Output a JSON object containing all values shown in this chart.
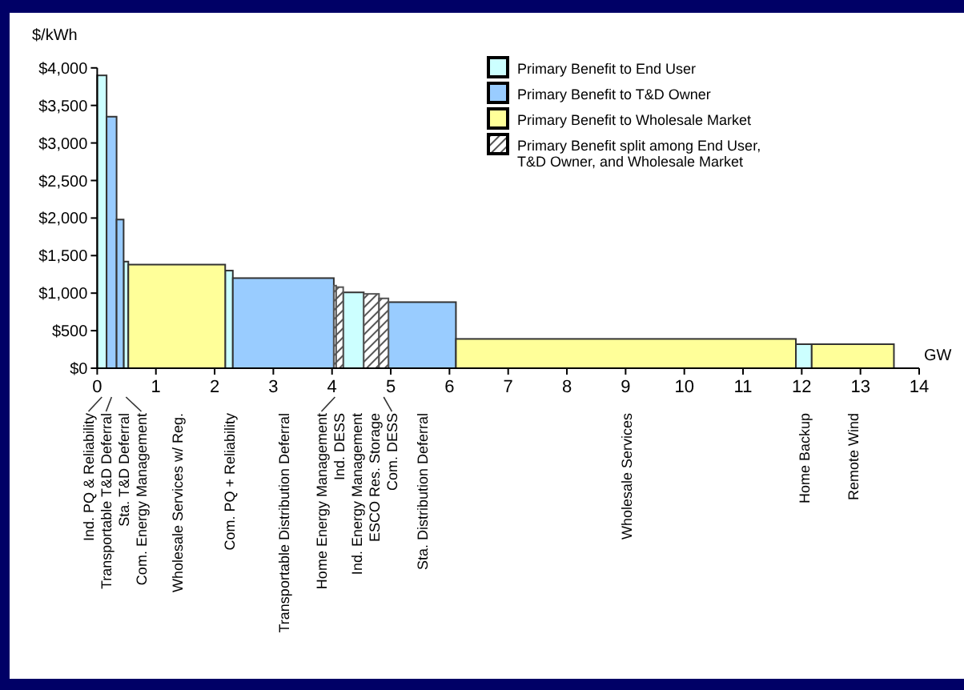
{
  "chart_data": {
    "type": "histogram",
    "ylabel": "$/kWh",
    "xlabel": "GW",
    "categories": [
      "Ind. PQ & Reliability",
      "Transportable T&D Deferral",
      "Sta. T&D Deferral",
      "Com. Energy Management",
      "Wholesale Services w/ Reg.",
      "Com. PQ + Reliability",
      "Transportable Distribution Deferral",
      "Home Energy Management",
      "Ind. DESS",
      "Ind. Energy Management",
      "ESCO Res. Storage",
      "Com. DESS",
      "Sta. Distribution Deferral",
      "Wholesale Services",
      "Home Backup",
      "Remote Wind"
    ],
    "bins": [
      0,
      0.16,
      0.33,
      0.45,
      0.53,
      2.18,
      2.31,
      4.03,
      4.07,
      4.19,
      4.54,
      4.8,
      4.96,
      6.11,
      11.9,
      12.17,
      13.57
    ],
    "series": [
      {
        "name": "Primary Benefit to End User",
        "color": "#ccffff",
        "values": [
          3900,
          null,
          null,
          1420,
          null,
          1300,
          null,
          null,
          null,
          1010,
          null,
          null,
          null,
          null,
          320,
          null
        ]
      },
      {
        "name": "Primary Benefit to T&D Owner",
        "color": "#99ccff",
        "values": [
          null,
          3350,
          1980,
          null,
          null,
          null,
          1200,
          null,
          null,
          null,
          null,
          null,
          880,
          null,
          null,
          null
        ]
      },
      {
        "name": "Primary Benefit to Wholesale Market",
        "color": "#ffff99",
        "values": [
          null,
          null,
          null,
          null,
          1380,
          null,
          null,
          null,
          null,
          null,
          null,
          null,
          null,
          390,
          null,
          320
        ]
      },
      {
        "name": "Primary Benefit split among End User, T&D Owner, and Wholesale Market",
        "color": "#555555",
        "values": [
          null,
          null,
          null,
          null,
          null,
          null,
          null,
          1100,
          1080,
          null,
          990,
          930,
          null,
          null,
          null,
          null
        ]
      }
    ],
    "xlim": [
      0,
      14
    ],
    "xticks": [
      0,
      1,
      2,
      3,
      4,
      5,
      6,
      7,
      8,
      9,
      10,
      11,
      12,
      13,
      14
    ],
    "ylim": [
      0,
      4000
    ],
    "yticks": [
      {
        "value": 0,
        "label": "$0"
      },
      {
        "value": 500,
        "label": "$500"
      },
      {
        "value": 1000,
        "label": "$1,000"
      },
      {
        "value": 1500,
        "label": "$1,500"
      },
      {
        "value": 2000,
        "label": "$2,000"
      },
      {
        "value": 2500,
        "label": "$2,500"
      },
      {
        "value": 3000,
        "label": "$3,000"
      },
      {
        "value": 3500,
        "label": "$3,500"
      },
      {
        "value": 4000,
        "label": "$4,000"
      }
    ],
    "grid": false,
    "legend": "top right"
  }
}
